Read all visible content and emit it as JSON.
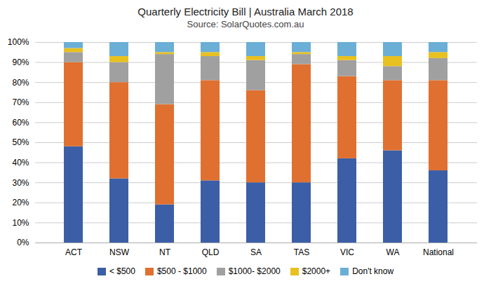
{
  "chart_data": {
    "type": "bar",
    "stacked": true,
    "title": "Quarterly Electricity Bill | Australia March 2018",
    "subtitle": "Source: SolarQuotes.com.au",
    "categories": [
      "ACT",
      "NSW",
      "NT",
      "QLD",
      "SA",
      "TAS",
      "VIC",
      "WA",
      "National"
    ],
    "series": [
      {
        "name": "< $500",
        "color": "#3b5ea6",
        "values": [
          48,
          32,
          19,
          31,
          30,
          30,
          42,
          46,
          36
        ]
      },
      {
        "name": "$500 - $1000",
        "color": "#e07030",
        "values": [
          42,
          48,
          50,
          50,
          46,
          59,
          41,
          35,
          45
        ]
      },
      {
        "name": "$1000- $2000",
        "color": "#a0a0a0",
        "values": [
          5,
          10,
          25,
          12,
          15,
          5,
          8,
          7,
          11
        ]
      },
      {
        "name": "$2000+",
        "color": "#e8c020",
        "values": [
          2,
          3,
          1,
          2,
          2,
          1,
          2,
          5,
          3
        ]
      },
      {
        "name": "Don't know",
        "color": "#6baed6",
        "values": [
          3,
          7,
          5,
          5,
          7,
          5,
          7,
          7,
          5
        ]
      }
    ],
    "ylim": [
      0,
      100
    ],
    "yticks": [
      {
        "value": 0,
        "label": "0%"
      },
      {
        "value": 10,
        "label": "10%"
      },
      {
        "value": 20,
        "label": "20%"
      },
      {
        "value": 30,
        "label": "30%"
      },
      {
        "value": 40,
        "label": "40%"
      },
      {
        "value": 50,
        "label": "50%"
      },
      {
        "value": 60,
        "label": "60%"
      },
      {
        "value": 70,
        "label": "70%"
      },
      {
        "value": 80,
        "label": "80%"
      },
      {
        "value": 90,
        "label": "90%"
      },
      {
        "value": 100,
        "label": "100%"
      }
    ],
    "grid": true,
    "legend": "bottom"
  }
}
